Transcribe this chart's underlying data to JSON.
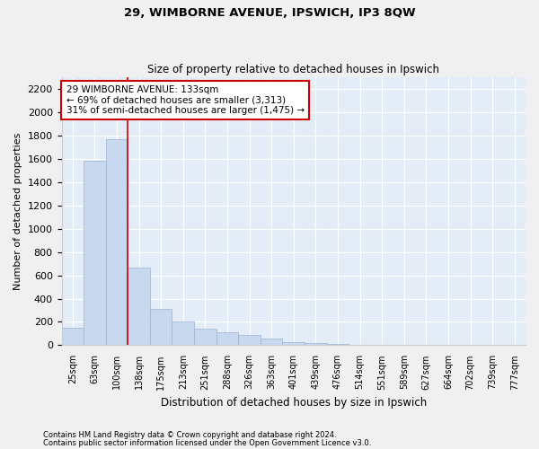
{
  "title1": "29, WIMBORNE AVENUE, IPSWICH, IP3 8QW",
  "title2": "Size of property relative to detached houses in Ipswich",
  "xlabel": "Distribution of detached houses by size in Ipswich",
  "ylabel": "Number of detached properties",
  "categories": [
    "25sqm",
    "63sqm",
    "100sqm",
    "138sqm",
    "175sqm",
    "213sqm",
    "251sqm",
    "288sqm",
    "326sqm",
    "363sqm",
    "401sqm",
    "439sqm",
    "476sqm",
    "514sqm",
    "551sqm",
    "589sqm",
    "627sqm",
    "664sqm",
    "702sqm",
    "739sqm",
    "777sqm"
  ],
  "values": [
    150,
    1580,
    1770,
    670,
    310,
    200,
    140,
    110,
    90,
    60,
    30,
    20,
    10,
    0,
    0,
    0,
    0,
    0,
    0,
    0,
    0
  ],
  "bar_color": "#c8d8ee",
  "bar_edge_color": "#9ab4d4",
  "bg_color": "#e4ecf7",
  "grid_color": "#ffffff",
  "ylim": [
    0,
    2300
  ],
  "yticks": [
    0,
    200,
    400,
    600,
    800,
    1000,
    1200,
    1400,
    1600,
    1800,
    2000,
    2200
  ],
  "vline_color": "#cc0000",
  "annotation_text": "29 WIMBORNE AVENUE: 133sqm\n← 69% of detached houses are smaller (3,313)\n31% of semi-detached houses are larger (1,475) →",
  "annotation_box_color": "#cc0000",
  "footnote1": "Contains HM Land Registry data © Crown copyright and database right 2024.",
  "footnote2": "Contains public sector information licensed under the Open Government Licence v3.0."
}
